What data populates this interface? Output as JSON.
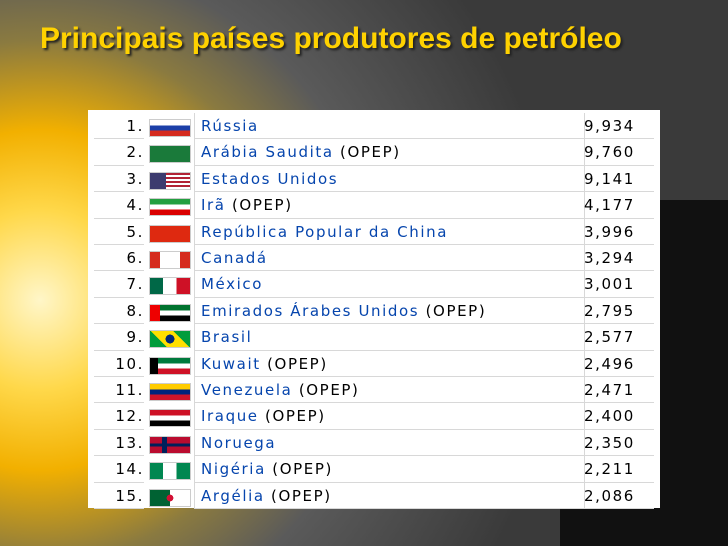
{
  "header": {
    "title": "Principais países produtores de petróleo"
  },
  "table": {
    "rows": [
      {
        "rank": "1.",
        "country": "Rússia",
        "value": "9,934"
      },
      {
        "rank": "2.",
        "country": "Arábia Saudita",
        "note": "(OPEP)",
        "value": "9,760"
      },
      {
        "rank": "3.",
        "country": "Estados Unidos",
        "value": "9,141"
      },
      {
        "rank": "4.",
        "country": "Irã",
        "note": "(OPEP)",
        "value": "4,177"
      },
      {
        "rank": "5.",
        "country": "República Popular da China",
        "value": "3,996"
      },
      {
        "rank": "6.",
        "country": "Canadá",
        "value": "3,294"
      },
      {
        "rank": "7.",
        "country": "México",
        "value": "3,001"
      },
      {
        "rank": "8.",
        "country": "Emirados Árabes Unidos",
        "note": "(OPEP)",
        "value": "2,795"
      },
      {
        "rank": "9.",
        "country": "Brasil",
        "value": "2,577"
      },
      {
        "rank": "10.",
        "country": "Kuwait",
        "note": "(OPEP)",
        "value": "2,496"
      },
      {
        "rank": "11.",
        "country": "Venezuela",
        "note": "(OPEP)",
        "value": "2,471"
      },
      {
        "rank": "12.",
        "country": "Iraque",
        "note": "(OPEP)",
        "value": "2,400"
      },
      {
        "rank": "13.",
        "country": "Noruega",
        "value": "2,350"
      },
      {
        "rank": "14.",
        "country": "Nigéria",
        "note": "(OPEP)",
        "value": "2,211"
      },
      {
        "rank": "15.",
        "country": "Argélia",
        "note": "(OPEP)",
        "value": "2,086"
      }
    ]
  }
}
